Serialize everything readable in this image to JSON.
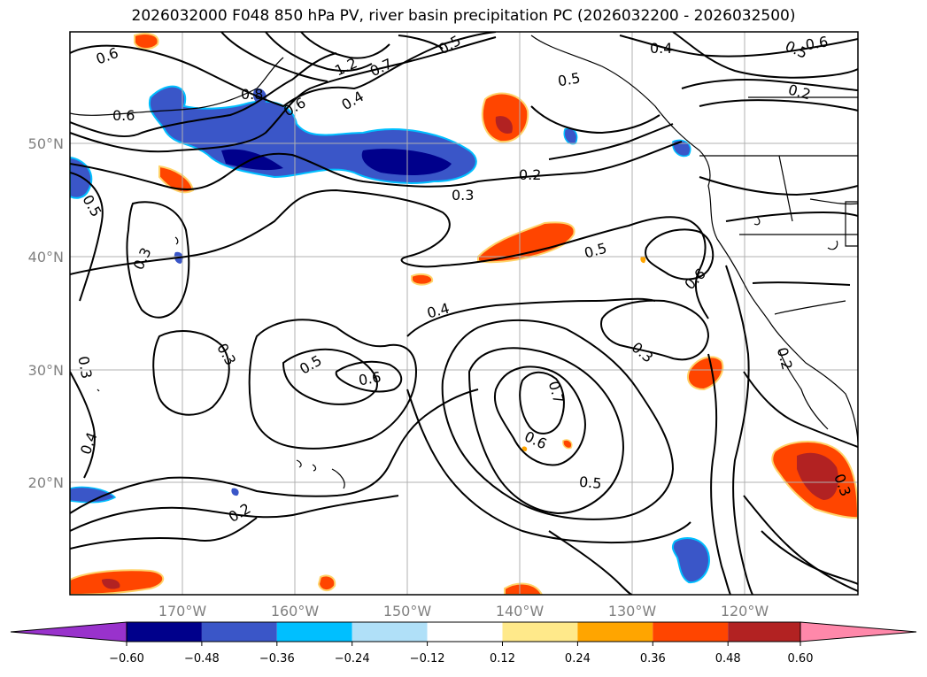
{
  "title": "2026032000 F048 850 hPa PV, river basin precipitation PC (2026032200 - 2026032500)",
  "map": {
    "lat_labels": [
      "50°N",
      "40°N",
      "30°N",
      "20°N"
    ],
    "lon_labels": [
      "170°W",
      "160°W",
      "150°W",
      "140°W",
      "130°W",
      "120°W"
    ],
    "contour_labels": [
      "0.6",
      "0.6",
      "0.8",
      "0.6",
      "0.4",
      "1.2",
      "0.7",
      "0.5",
      "0.4",
      "0.6",
      "0.5",
      "0.5",
      "0.2",
      "0.2",
      "0.3",
      "0.5",
      "0.3",
      "0.5",
      "0.6",
      "0.4",
      "0.3",
      "0.3",
      "0.5",
      "0.6",
      "0.7",
      "0.3",
      "0.2",
      "0.6",
      "0.5",
      "0.4",
      "0.2",
      "0.3"
    ]
  },
  "colorbar": {
    "tick_labels": [
      "−0.60",
      "−0.48",
      "−0.36",
      "−0.24",
      "−0.12",
      "0.12",
      "0.24",
      "0.36",
      "0.48",
      "0.60"
    ],
    "colors": [
      "#9932cc",
      "#00008b",
      "#3a56c8",
      "#00bfff",
      "#b0e0f8",
      "#ffffff",
      "#ffe98a",
      "#ffa500",
      "#ff4500",
      "#b22222",
      "#ff88aa"
    ]
  }
}
